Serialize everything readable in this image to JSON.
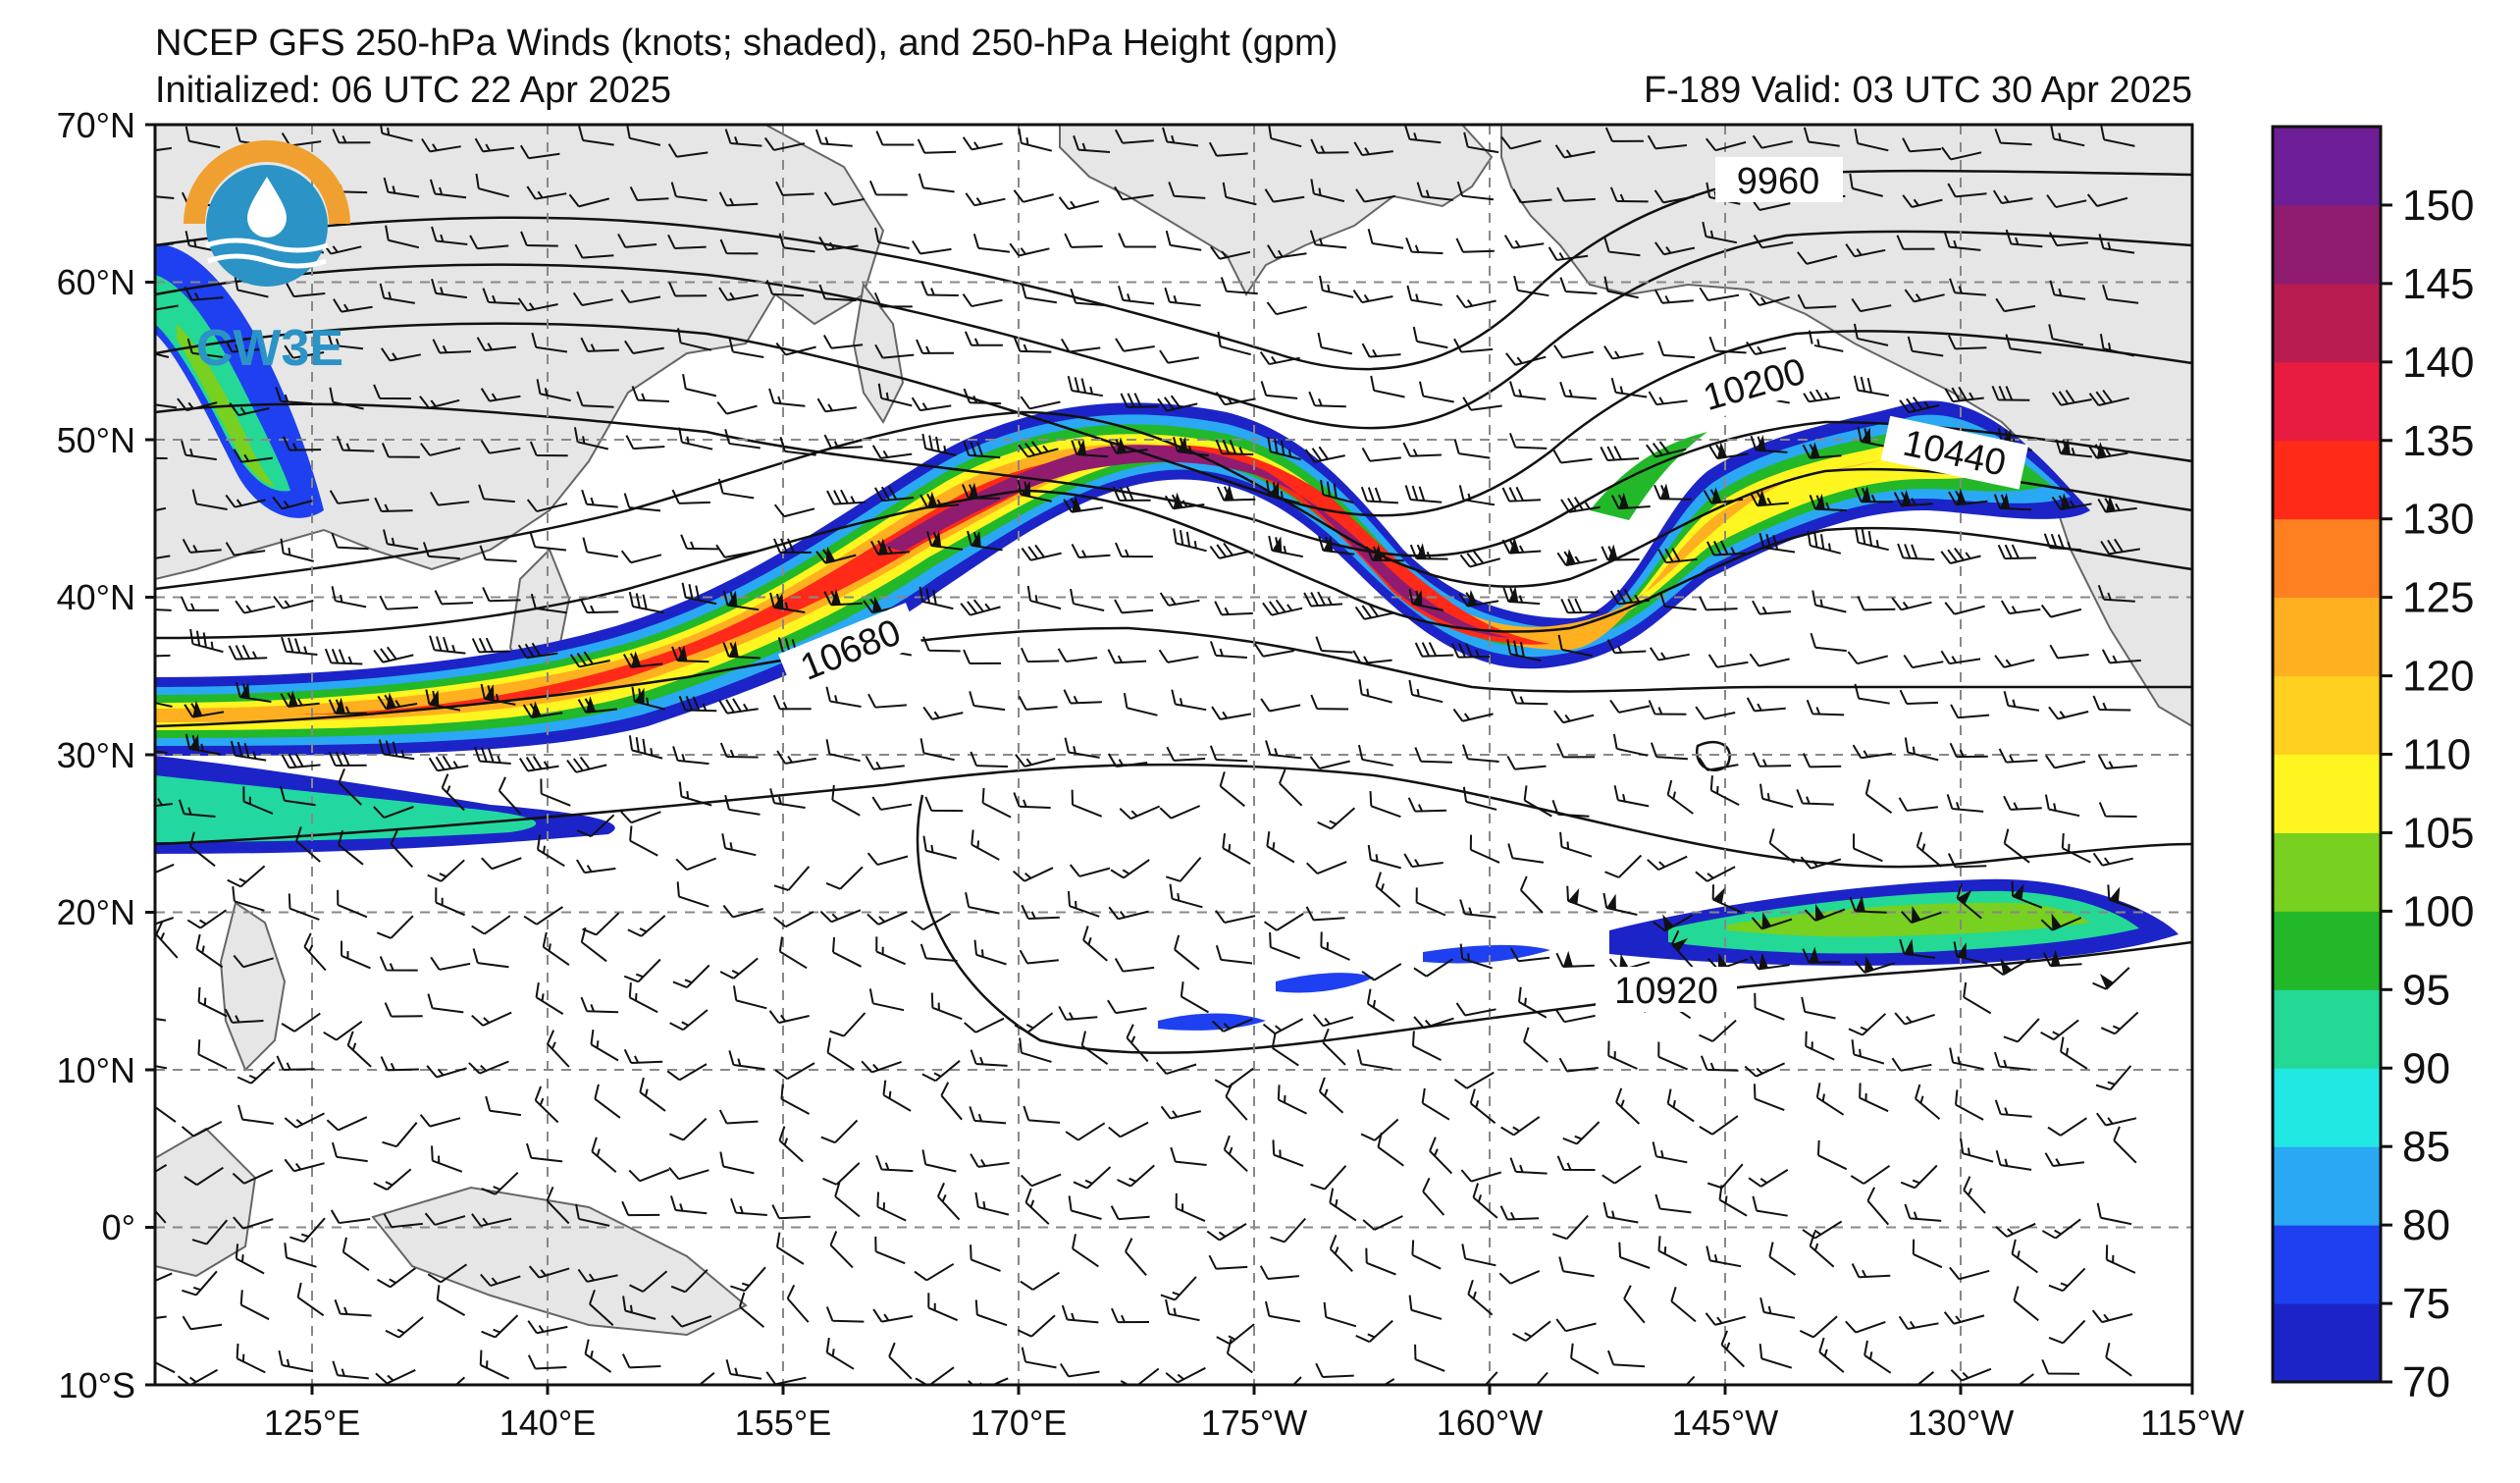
{
  "header": {
    "title": "NCEP GFS 250-hPa Winds (knots; shaded), and 250-hPa Height (gpm)",
    "initialized": "Initialized: 06 UTC 22 Apr 2025",
    "valid": "F-189  Valid: 03 UTC 30 Apr 2025"
  },
  "logo": {
    "text": "CW3E",
    "colors": {
      "orange": "#f0a030",
      "blue": "#2b93c6"
    }
  },
  "map": {
    "lat_labels": [
      "70°N",
      "60°N",
      "50°N",
      "40°N",
      "30°N",
      "20°N",
      "10°N",
      "0°",
      "10°S"
    ],
    "lon_labels": [
      "125°E",
      "140°E",
      "155°E",
      "170°E",
      "175°W",
      "160°W",
      "145°W",
      "130°W",
      "115°W"
    ],
    "extent": {
      "lon_west": 115,
      "lon_east": 245,
      "lat_south": -10,
      "lat_north": 70
    },
    "contour_labels": [
      "9960",
      "10200",
      "10440",
      "10680",
      "10920"
    ],
    "land_color": "#e6e6e6",
    "grid_style": "dashed gray"
  },
  "colorbar": {
    "ticks": [
      "70",
      "75",
      "80",
      "85",
      "90",
      "95",
      "100",
      "105",
      "110",
      "120",
      "125",
      "130",
      "135",
      "140",
      "145",
      "150"
    ],
    "colors": [
      "#1c24c8",
      "#1e40f0",
      "#2aa8f4",
      "#22e8e4",
      "#24d896",
      "#22b82a",
      "#78d020",
      "#fff520",
      "#ffd020",
      "#ffb020",
      "#ff8020",
      "#ff2a18",
      "#e81c40",
      "#b81c50",
      "#901c70",
      "#6e1e96"
    ]
  }
}
